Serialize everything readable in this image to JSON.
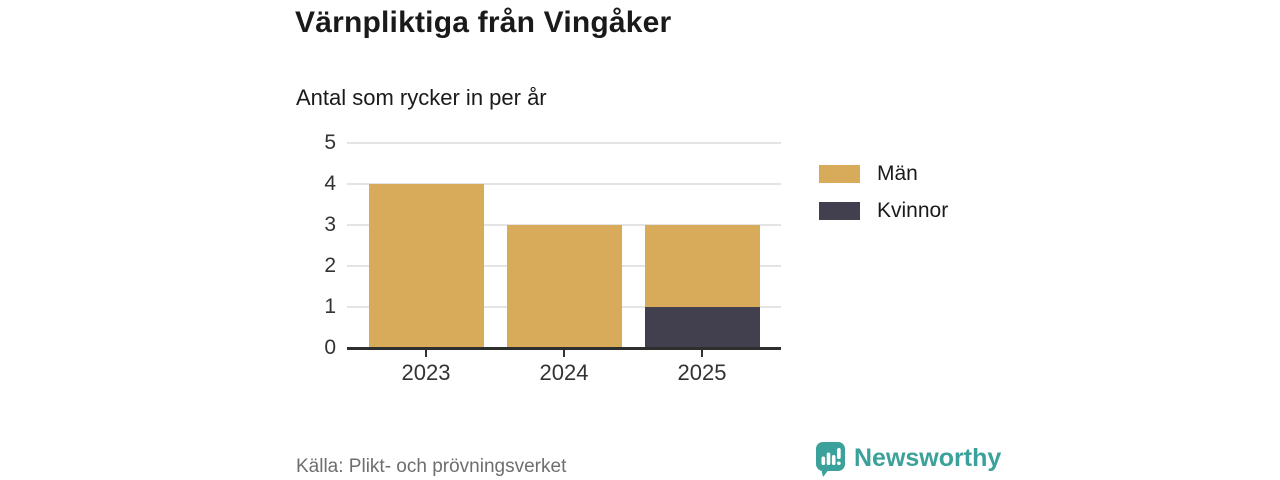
{
  "header": {
    "title": "Värnpliktiga från Vingåker",
    "subtitle": "Antal som rycker in per år"
  },
  "chart_data": {
    "type": "bar",
    "stacked": true,
    "title": "Värnpliktiga från Vingåker",
    "subtitle": "Antal som rycker in per år",
    "categories": [
      "2023",
      "2024",
      "2025"
    ],
    "series": [
      {
        "name": "Män",
        "color": "#D8AB5A",
        "values": [
          4,
          3,
          2
        ]
      },
      {
        "name": "Kvinnor",
        "color": "#42404E",
        "values": [
          0,
          0,
          1
        ]
      }
    ],
    "totals": [
      4,
      3,
      3
    ],
    "xlabel": "",
    "ylabel": "",
    "ylim": [
      0,
      5
    ],
    "yticks": [
      0,
      1,
      2,
      3,
      4,
      5
    ],
    "grid": true,
    "legend_position": "right"
  },
  "legend": {
    "items": [
      {
        "label": "Män",
        "color": "#D8AB5A"
      },
      {
        "label": "Kvinnor",
        "color": "#42404E"
      }
    ]
  },
  "footer": {
    "source": "Källa: Plikt- och prövningsverket",
    "brand": "Newsworthy"
  },
  "colors": {
    "accent_gold": "#D8AB5A",
    "accent_dark": "#42404E",
    "brand_teal": "#3AA19B",
    "gridline": "#E4E4E4",
    "axis": "#2E2E2E",
    "text_dark": "#1A1A1A",
    "text_muted": "#6E6E6E"
  }
}
